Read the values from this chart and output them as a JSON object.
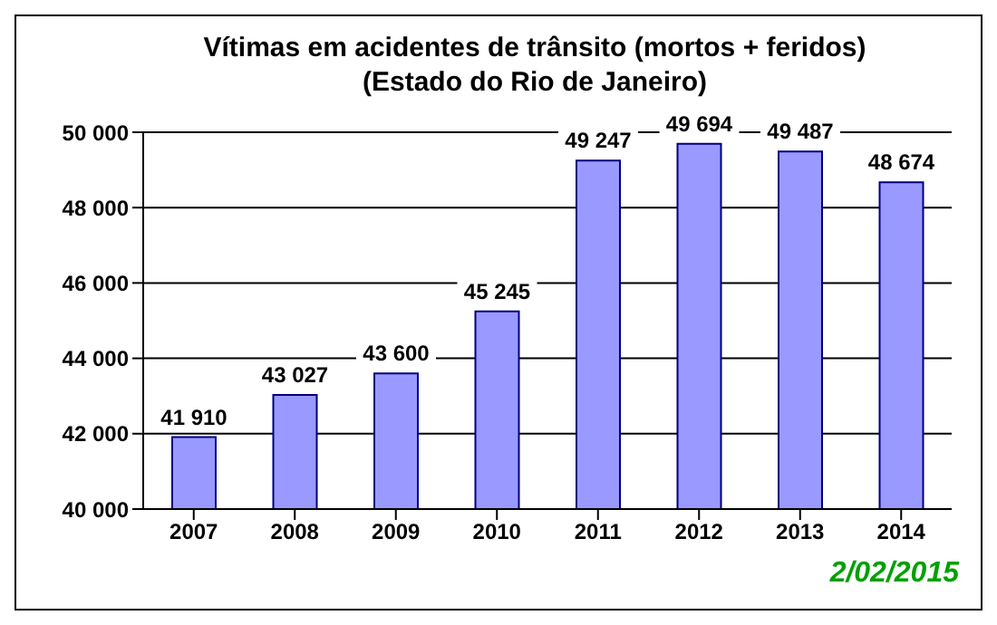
{
  "chart_data": {
    "type": "bar",
    "title": "Vítimas em acidentes de trânsito (mortos + feridos)",
    "subtitle": "(Estado do Rio de Janeiro)",
    "categories": [
      "2007",
      "2008",
      "2009",
      "2010",
      "2011",
      "2012",
      "2013",
      "2014"
    ],
    "values": [
      41910,
      43027,
      43600,
      45245,
      49247,
      49694,
      49487,
      48674
    ],
    "value_labels": [
      "41 910",
      "43 027",
      "43 600",
      "45 245",
      "49 247",
      "49 694",
      "49 487",
      "48 674"
    ],
    "color": "#9999ff",
    "ylim": [
      40000,
      50000
    ],
    "yticks": [
      {
        "value": 40000,
        "label": "40 000"
      },
      {
        "value": 42000,
        "label": "42 000"
      },
      {
        "value": 44000,
        "label": "44 000"
      },
      {
        "value": 46000,
        "label": "46 000"
      },
      {
        "value": 48000,
        "label": "48 000"
      },
      {
        "value": 50000,
        "label": "50 000"
      }
    ],
    "grid": "y",
    "annotations": [
      "2/02/2015"
    ]
  }
}
